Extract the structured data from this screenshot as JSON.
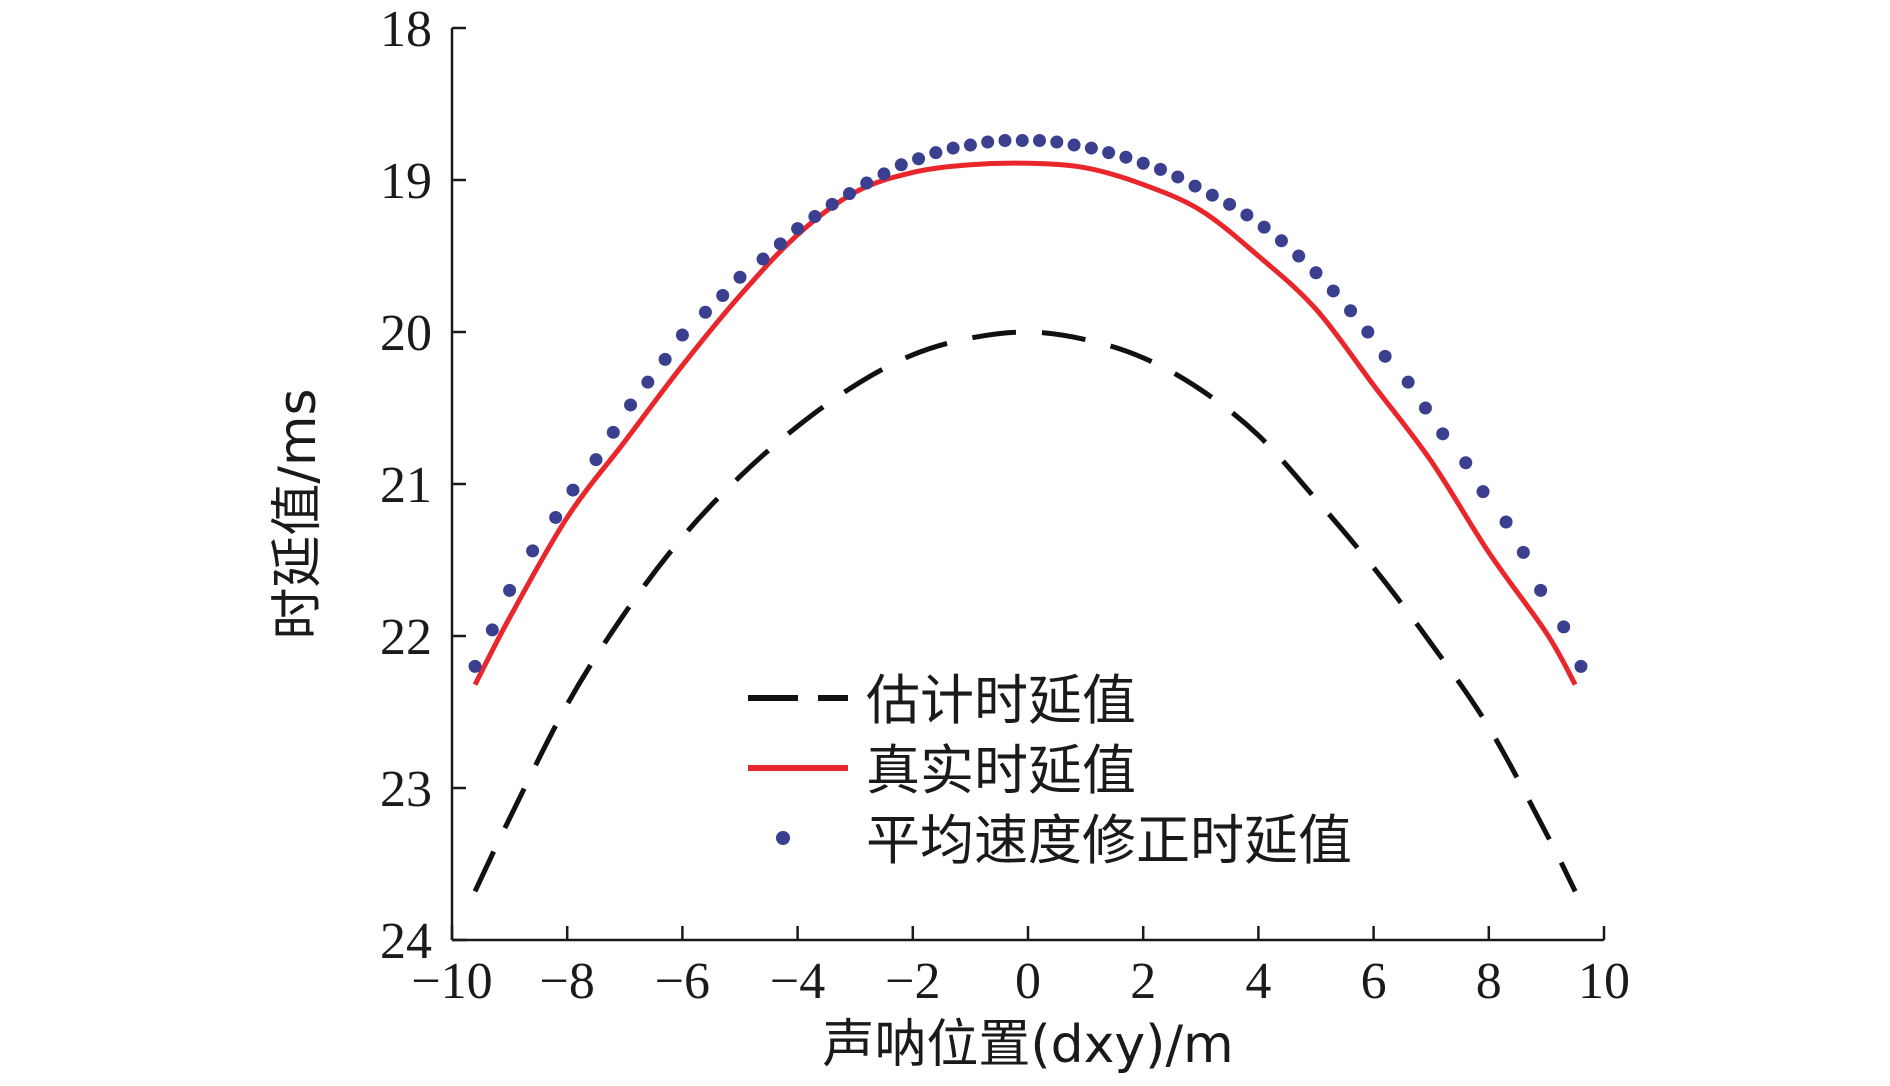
{
  "chart_data": {
    "type": "line",
    "xlabel": "声呐位置(dxy)/m",
    "ylabel": "时延值/ms",
    "xlim": [
      -10,
      10
    ],
    "ylim": [
      18,
      24
    ],
    "y_inverted": true,
    "xticks": [
      -10,
      -8,
      -6,
      -4,
      -2,
      0,
      2,
      4,
      6,
      8,
      10
    ],
    "xtick_labels": [
      "−10",
      "−8",
      "−6",
      "−4",
      "−2",
      "0",
      "2",
      "4",
      "6",
      "8",
      "10"
    ],
    "yticks": [
      18,
      19,
      20,
      21,
      22,
      23,
      24
    ],
    "ytick_labels": [
      "18",
      "19",
      "20",
      "21",
      "22",
      "23",
      "24"
    ],
    "grid": false,
    "legend_position": "bottom-center",
    "series": [
      {
        "name": "估计时延值",
        "style": "dashed",
        "color": "#111111",
        "x": [
          -9.6,
          -9,
          -8,
          -7,
          -6,
          -5,
          -4,
          -3,
          -2,
          -1,
          0,
          1,
          2,
          3,
          4,
          5,
          6,
          7,
          8,
          9,
          9.5
        ],
        "y": [
          23.68,
          23.2,
          22.45,
          21.85,
          21.35,
          20.95,
          20.62,
          20.35,
          20.15,
          20.04,
          20.0,
          20.05,
          20.17,
          20.38,
          20.68,
          21.1,
          21.55,
          22.05,
          22.6,
          23.3,
          23.68
        ]
      },
      {
        "name": "真实时延值",
        "style": "solid",
        "color": "#e8262b",
        "x": [
          -9.6,
          -9,
          -8,
          -7,
          -6,
          -5,
          -4,
          -3,
          -2,
          -1,
          0,
          1,
          2,
          3,
          4,
          5,
          6,
          7,
          8,
          9,
          9.5
        ],
        "y": [
          22.32,
          21.88,
          21.22,
          20.72,
          20.22,
          19.76,
          19.36,
          19.08,
          18.95,
          18.9,
          18.89,
          18.92,
          19.03,
          19.2,
          19.5,
          19.85,
          20.35,
          20.85,
          21.45,
          21.98,
          22.32
        ]
      },
      {
        "name": "平均速度修正时延值",
        "style": "dots",
        "color": "#3b3f8f",
        "x": [
          -9.6,
          -9.3,
          -9.0,
          -8.6,
          -8.2,
          -7.9,
          -7.5,
          -7.2,
          -6.9,
          -6.6,
          -6.3,
          -6.0,
          -5.6,
          -5.3,
          -5.0,
          -4.6,
          -4.3,
          -4.0,
          -3.7,
          -3.4,
          -3.1,
          -2.8,
          -2.5,
          -2.2,
          -1.9,
          -1.6,
          -1.3,
          -1.0,
          -0.7,
          -0.4,
          -0.1,
          0.2,
          0.5,
          0.8,
          1.1,
          1.4,
          1.7,
          2.0,
          2.3,
          2.6,
          2.9,
          3.2,
          3.5,
          3.8,
          4.1,
          4.4,
          4.7,
          5.0,
          5.3,
          5.6,
          5.9,
          6.2,
          6.6,
          6.9,
          7.2,
          7.6,
          7.9,
          8.3,
          8.6,
          8.9,
          9.3,
          9.6
        ],
        "y": [
          22.2,
          21.96,
          21.7,
          21.44,
          21.22,
          21.04,
          20.84,
          20.66,
          20.48,
          20.33,
          20.18,
          20.02,
          19.87,
          19.76,
          19.64,
          19.52,
          19.42,
          19.32,
          19.24,
          19.16,
          19.09,
          19.02,
          18.96,
          18.9,
          18.86,
          18.82,
          18.79,
          18.77,
          18.75,
          18.74,
          18.74,
          18.74,
          18.75,
          18.77,
          18.79,
          18.82,
          18.85,
          18.89,
          18.93,
          18.98,
          19.04,
          19.1,
          19.16,
          19.23,
          19.31,
          19.4,
          19.5,
          19.61,
          19.73,
          19.86,
          20.0,
          20.16,
          20.33,
          20.5,
          20.67,
          20.86,
          21.05,
          21.25,
          21.45,
          21.7,
          21.94,
          22.2
        ]
      }
    ]
  }
}
